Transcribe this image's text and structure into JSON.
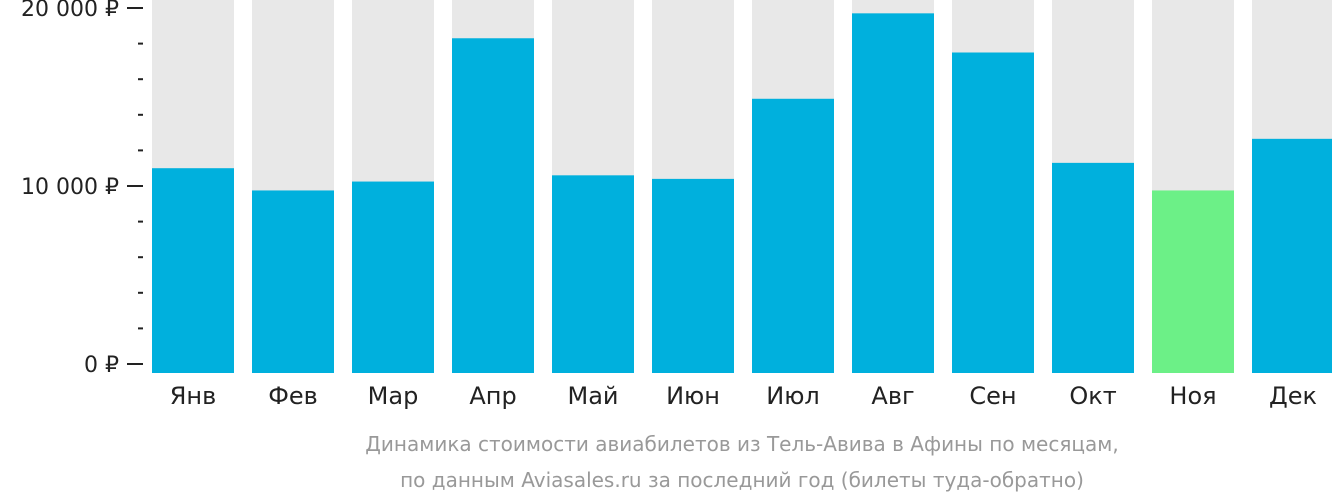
{
  "chart_data": {
    "type": "bar",
    "categories": [
      "Янв",
      "Фев",
      "Мар",
      "Апр",
      "Май",
      "Июн",
      "Июл",
      "Авг",
      "Сен",
      "Окт",
      "Ноя",
      "Дек"
    ],
    "values": [
      11000,
      9750,
      10250,
      18300,
      10600,
      10400,
      14900,
      19700,
      17500,
      11300,
      9750,
      12650
    ],
    "ylim": [
      0,
      20000
    ],
    "y_ticks": [
      {
        "value": 0,
        "label": "0 ₽"
      },
      {
        "value": 10000,
        "label": "10 000 ₽"
      },
      {
        "value": 20000,
        "label": "20 000 ₽"
      }
    ],
    "minor_tick_step": 2000,
    "highlight_index": 10,
    "colors": {
      "bar": "#00b0dd",
      "highlight": "#6cf087",
      "background_bar": "#e8e8e8",
      "axis": "#222222"
    },
    "caption": [
      "Динамика стоимости авиабилетов из Тель-Авива в Афины по месяцам,",
      "по данным Aviasales.ru за последний год (билеты туда-обратно)"
    ]
  }
}
